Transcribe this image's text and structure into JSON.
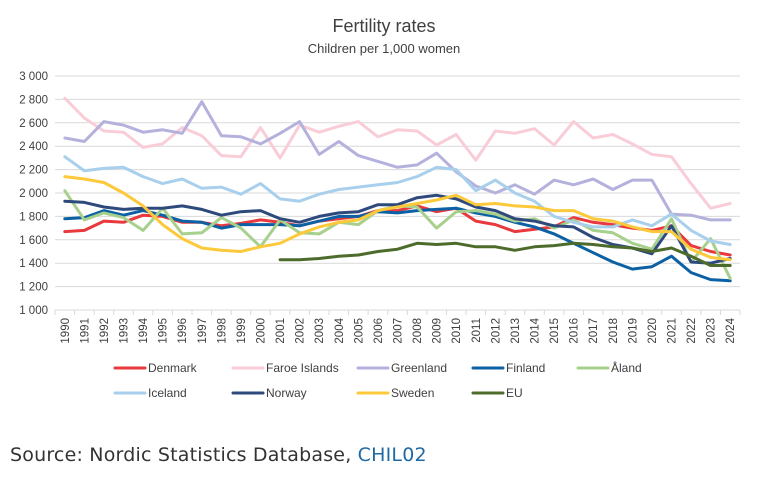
{
  "chart_data": {
    "type": "line",
    "title": "Fertility rates",
    "subtitle": "Children per 1,000 women",
    "ylim": [
      1000,
      3000
    ],
    "yticks": [
      1000,
      1200,
      1400,
      1600,
      1800,
      2000,
      2200,
      2400,
      2600,
      2800,
      3000
    ],
    "ytick_labels": [
      "1 000",
      "1 200",
      "1 400",
      "1 600",
      "1 800",
      "2 000",
      "2 200",
      "2 400",
      "2 600",
      "2 800",
      "3 000"
    ],
    "grid": true,
    "legend_position": "bottom",
    "x": [
      "1990",
      "1991",
      "1992",
      "1993",
      "1994",
      "1995",
      "1996",
      "1997",
      "1998",
      "1999",
      "2000",
      "2001",
      "2002",
      "2003",
      "2004",
      "2005",
      "2006",
      "2007",
      "2008",
      "2009",
      "2010",
      "2011",
      "2012",
      "2013",
      "2014",
      "2015",
      "2016",
      "2017",
      "2018",
      "2019",
      "2020",
      "2021",
      "2022",
      "2023",
      "2024"
    ],
    "series": [
      {
        "name": "Denmark",
        "color": "#e8393e",
        "values": [
          1670,
          1680,
          1760,
          1750,
          1810,
          1800,
          1750,
          1750,
          1720,
          1740,
          1770,
          1750,
          1720,
          1760,
          1780,
          1800,
          1850,
          1850,
          1890,
          1840,
          1870,
          1760,
          1730,
          1670,
          1690,
          1710,
          1790,
          1750,
          1730,
          1700,
          1680,
          1720,
          1550,
          1500,
          1470
        ]
      },
      {
        "name": "Faroe Islands",
        "color": "#f9cdd7",
        "values": [
          2810,
          2640,
          2530,
          2520,
          2390,
          2420,
          2560,
          2490,
          2320,
          2310,
          2560,
          2300,
          2580,
          2520,
          2570,
          2610,
          2480,
          2540,
          2530,
          2410,
          2500,
          2280,
          2530,
          2510,
          2550,
          2410,
          2610,
          2470,
          2500,
          2420,
          2330,
          2310,
          2080,
          1870,
          1910
        ]
      },
      {
        "name": "Greenland",
        "color": "#b4b2dc",
        "values": [
          2470,
          2440,
          2610,
          2580,
          2520,
          2540,
          2510,
          2780,
          2490,
          2480,
          2420,
          2510,
          2610,
          2330,
          2440,
          2320,
          2270,
          2220,
          2240,
          2340,
          2180,
          2060,
          2000,
          2070,
          1990,
          2110,
          2070,
          2120,
          2030,
          2110,
          2110,
          1820,
          1810,
          1770,
          1770
        ]
      },
      {
        "name": "Finland",
        "color": "#0b61a4",
        "values": [
          1780,
          1790,
          1850,
          1810,
          1850,
          1810,
          1760,
          1750,
          1700,
          1730,
          1730,
          1730,
          1720,
          1760,
          1800,
          1800,
          1840,
          1830,
          1850,
          1860,
          1870,
          1830,
          1800,
          1750,
          1710,
          1650,
          1570,
          1490,
          1410,
          1350,
          1370,
          1460,
          1320,
          1260,
          1250
        ]
      },
      {
        "name": "Åland",
        "color": "#a7d08c",
        "values": [
          2020,
          1770,
          1830,
          1790,
          1680,
          1870,
          1650,
          1660,
          1790,
          1700,
          1540,
          1770,
          1660,
          1650,
          1750,
          1730,
          1850,
          1890,
          1880,
          1700,
          1840,
          1850,
          1820,
          1760,
          1780,
          1700,
          1770,
          1680,
          1660,
          1570,
          1520,
          1780,
          1410,
          1610,
          1270
        ]
      },
      {
        "name": "Iceland",
        "color": "#a8cfec",
        "values": [
          2310,
          2190,
          2210,
          2220,
          2140,
          2080,
          2120,
          2040,
          2050,
          1990,
          2080,
          1950,
          1930,
          1990,
          2030,
          2050,
          2070,
          2090,
          2140,
          2220,
          2200,
          2020,
          2110,
          2000,
          1930,
          1800,
          1750,
          1710,
          1710,
          1770,
          1720,
          1820,
          1680,
          1590,
          1560
        ]
      },
      {
        "name": "Norway",
        "color": "#2e4a7d",
        "values": [
          1930,
          1920,
          1880,
          1860,
          1870,
          1870,
          1890,
          1860,
          1810,
          1840,
          1850,
          1780,
          1750,
          1800,
          1830,
          1840,
          1900,
          1900,
          1960,
          1980,
          1950,
          1880,
          1850,
          1780,
          1760,
          1720,
          1710,
          1620,
          1560,
          1530,
          1480,
          1720,
          1410,
          1400,
          1440
        ]
      },
      {
        "name": "Sweden",
        "color": "#fcc93a",
        "values": [
          2140,
          2120,
          2090,
          2000,
          1890,
          1730,
          1610,
          1530,
          1510,
          1500,
          1540,
          1570,
          1650,
          1710,
          1750,
          1770,
          1850,
          1880,
          1910,
          1940,
          1980,
          1900,
          1910,
          1890,
          1880,
          1850,
          1850,
          1780,
          1760,
          1710,
          1670,
          1670,
          1520,
          1450,
          1430
        ]
      },
      {
        "name": "EU",
        "color": "#4d6c2c",
        "values": [
          null,
          null,
          null,
          null,
          null,
          null,
          null,
          null,
          null,
          null,
          null,
          1430,
          1430,
          1440,
          1460,
          1470,
          1500,
          1520,
          1570,
          1560,
          1570,
          1540,
          1540,
          1510,
          1540,
          1550,
          1570,
          1560,
          1540,
          1530,
          1500,
          1530,
          1460,
          1380,
          1380
        ]
      }
    ]
  },
  "source": {
    "prefix": "Source: Nordic Statistics Database, ",
    "link_text": "CHIL02"
  }
}
